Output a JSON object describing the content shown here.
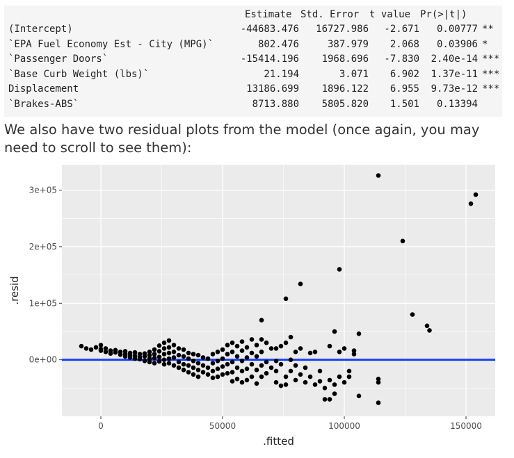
{
  "summary_table": {
    "header": [
      "Estimate",
      "Std. Error",
      "t value",
      "Pr(>|t|)"
    ],
    "rows": [
      {
        "term": "(Intercept)",
        "estimate": "-44683.476",
        "std_error": "16727.986",
        "t_value": "-2.671",
        "p_value": "0.00777",
        "signif": "**"
      },
      {
        "term": "`EPA Fuel Economy Est - City (MPG)`",
        "estimate": "802.476",
        "std_error": "387.979",
        "t_value": "2.068",
        "p_value": "0.03906",
        "signif": "*"
      },
      {
        "term": "`Passenger Doors`",
        "estimate": "-15414.196",
        "std_error": "1968.696",
        "t_value": "-7.830",
        "p_value": "2.40e-14",
        "signif": "***"
      },
      {
        "term": "`Base Curb Weight (lbs)`",
        "estimate": "21.194",
        "std_error": "3.071",
        "t_value": "6.902",
        "p_value": "1.37e-11",
        "signif": "***"
      },
      {
        "term": "Displacement",
        "estimate": "13186.699",
        "std_error": "1896.122",
        "t_value": "6.955",
        "p_value": "9.73e-12",
        "signif": "***"
      },
      {
        "term": "`Brakes-ABS`",
        "estimate": "8713.880",
        "std_error": "5805.820",
        "t_value": "1.501",
        "p_value": "0.13394",
        "signif": ""
      }
    ]
  },
  "prose": {
    "text": "We also have two residual plots from the model (once again, you may need to scroll to see them):"
  },
  "colors": {
    "panel_bg": "#ebebeb",
    "grid": "#ffffff",
    "points": "#000000",
    "fit_line": "#1a3ff5",
    "code_bg": "#f5f5f5"
  },
  "chart_data": {
    "type": "scatter",
    "title": "",
    "xlabel": ".fitted",
    "ylabel": ".resid",
    "xlim": [
      -16000,
      162000
    ],
    "ylim": [
      -100000,
      345000
    ],
    "x_ticks": [
      0,
      50000,
      100000,
      150000
    ],
    "x_tick_labels": [
      "0",
      "50000",
      "100000",
      "150000"
    ],
    "y_ticks": [
      0,
      100000,
      200000,
      300000
    ],
    "y_tick_labels": [
      "0e+00",
      "1e+05",
      "2e+05",
      "3e+05"
    ],
    "hline": 0,
    "grid": true,
    "points": [
      [
        -8000,
        24000
      ],
      [
        -6000,
        20000
      ],
      [
        -4000,
        18000
      ],
      [
        -2000,
        22000
      ],
      [
        0,
        16000
      ],
      [
        0,
        19000
      ],
      [
        0,
        26000
      ],
      [
        2000,
        14000
      ],
      [
        2000,
        20000
      ],
      [
        4000,
        16000
      ],
      [
        4000,
        11000
      ],
      [
        6000,
        17000
      ],
      [
        6000,
        13000
      ],
      [
        8000,
        14000
      ],
      [
        8000,
        9000
      ],
      [
        10000,
        15000
      ],
      [
        10000,
        10000
      ],
      [
        10000,
        6000
      ],
      [
        12000,
        12000
      ],
      [
        12000,
        8000
      ],
      [
        12000,
        4000
      ],
      [
        14000,
        13000
      ],
      [
        14000,
        7000
      ],
      [
        14000,
        2000
      ],
      [
        16000,
        10000
      ],
      [
        16000,
        5000
      ],
      [
        16000,
        1000
      ],
      [
        18000,
        11000
      ],
      [
        18000,
        6000
      ],
      [
        18000,
        -2000
      ],
      [
        20000,
        14000
      ],
      [
        20000,
        8000
      ],
      [
        20000,
        2000
      ],
      [
        20000,
        -4000
      ],
      [
        22000,
        18000
      ],
      [
        22000,
        10000
      ],
      [
        22000,
        3000
      ],
      [
        22000,
        -6000
      ],
      [
        24000,
        25000
      ],
      [
        24000,
        15000
      ],
      [
        24000,
        5000
      ],
      [
        24000,
        -3000
      ],
      [
        26000,
        30000
      ],
      [
        26000,
        20000
      ],
      [
        26000,
        10000
      ],
      [
        26000,
        0
      ],
      [
        26000,
        -8000
      ],
      [
        28000,
        34000
      ],
      [
        28000,
        22000
      ],
      [
        28000,
        12000
      ],
      [
        28000,
        2000
      ],
      [
        28000,
        -6000
      ],
      [
        30000,
        26000
      ],
      [
        30000,
        14000
      ],
      [
        30000,
        4000
      ],
      [
        30000,
        -10000
      ],
      [
        32000,
        20000
      ],
      [
        32000,
        8000
      ],
      [
        32000,
        -4000
      ],
      [
        32000,
        -14000
      ],
      [
        34000,
        18000
      ],
      [
        34000,
        6000
      ],
      [
        34000,
        -8000
      ],
      [
        34000,
        -18000
      ],
      [
        36000,
        12000
      ],
      [
        36000,
        2000
      ],
      [
        36000,
        -10000
      ],
      [
        36000,
        -22000
      ],
      [
        38000,
        10000
      ],
      [
        38000,
        -2000
      ],
      [
        38000,
        -14000
      ],
      [
        38000,
        -26000
      ],
      [
        40000,
        8000
      ],
      [
        40000,
        -6000
      ],
      [
        40000,
        -18000
      ],
      [
        40000,
        -30000
      ],
      [
        42000,
        4000
      ],
      [
        42000,
        -10000
      ],
      [
        42000,
        -22000
      ],
      [
        44000,
        2000
      ],
      [
        44000,
        -14000
      ],
      [
        44000,
        -26000
      ],
      [
        46000,
        10000
      ],
      [
        46000,
        -6000
      ],
      [
        46000,
        -20000
      ],
      [
        46000,
        -32000
      ],
      [
        48000,
        14000
      ],
      [
        48000,
        -2000
      ],
      [
        48000,
        -16000
      ],
      [
        48000,
        -30000
      ],
      [
        50000,
        18000
      ],
      [
        50000,
        2000
      ],
      [
        50000,
        -12000
      ],
      [
        50000,
        -26000
      ],
      [
        52000,
        26000
      ],
      [
        52000,
        10000
      ],
      [
        52000,
        -8000
      ],
      [
        52000,
        -24000
      ],
      [
        54000,
        30000
      ],
      [
        54000,
        14000
      ],
      [
        54000,
        -4000
      ],
      [
        54000,
        -22000
      ],
      [
        54000,
        -38000
      ],
      [
        56000,
        24000
      ],
      [
        56000,
        6000
      ],
      [
        56000,
        -14000
      ],
      [
        56000,
        -34000
      ],
      [
        58000,
        32000
      ],
      [
        58000,
        16000
      ],
      [
        58000,
        -2000
      ],
      [
        58000,
        -20000
      ],
      [
        58000,
        -40000
      ],
      [
        60000,
        22000
      ],
      [
        60000,
        4000
      ],
      [
        60000,
        -16000
      ],
      [
        60000,
        -36000
      ],
      [
        62000,
        36000
      ],
      [
        62000,
        12000
      ],
      [
        62000,
        -8000
      ],
      [
        62000,
        -30000
      ],
      [
        64000,
        26000
      ],
      [
        64000,
        6000
      ],
      [
        64000,
        -18000
      ],
      [
        64000,
        -42000
      ],
      [
        66000,
        70000
      ],
      [
        66000,
        36000
      ],
      [
        66000,
        14000
      ],
      [
        66000,
        -10000
      ],
      [
        66000,
        -30000
      ],
      [
        68000,
        30000
      ],
      [
        68000,
        -4000
      ],
      [
        68000,
        -24000
      ],
      [
        70000,
        20000
      ],
      [
        70000,
        -14000
      ],
      [
        72000,
        20000
      ],
      [
        72000,
        -2000
      ],
      [
        72000,
        -20000
      ],
      [
        72000,
        -40000
      ],
      [
        74000,
        24000
      ],
      [
        74000,
        -8000
      ],
      [
        74000,
        -46000
      ],
      [
        76000,
        108000
      ],
      [
        76000,
        30000
      ],
      [
        76000,
        -30000
      ],
      [
        76000,
        -44000
      ],
      [
        78000,
        40000
      ],
      [
        78000,
        0
      ],
      [
        78000,
        -20000
      ],
      [
        80000,
        14000
      ],
      [
        80000,
        -10000
      ],
      [
        80000,
        -36000
      ],
      [
        82000,
        134000
      ],
      [
        82000,
        20000
      ],
      [
        82000,
        -26000
      ],
      [
        84000,
        -14000
      ],
      [
        84000,
        -40000
      ],
      [
        86000,
        12000
      ],
      [
        86000,
        -30000
      ],
      [
        88000,
        14000
      ],
      [
        88000,
        -44000
      ],
      [
        90000,
        -38000
      ],
      [
        90000,
        -20000
      ],
      [
        92000,
        -50000
      ],
      [
        92000,
        -70000
      ],
      [
        94000,
        24000
      ],
      [
        94000,
        -36000
      ],
      [
        94000,
        -70000
      ],
      [
        96000,
        50000
      ],
      [
        96000,
        -44000
      ],
      [
        96000,
        -60000
      ],
      [
        98000,
        160000
      ],
      [
        98000,
        14000
      ],
      [
        98000,
        -30000
      ],
      [
        100000,
        20000
      ],
      [
        100000,
        -40000
      ],
      [
        102000,
        -30000
      ],
      [
        102000,
        -20000
      ],
      [
        104000,
        16000
      ],
      [
        104000,
        10000
      ],
      [
        106000,
        46000
      ],
      [
        106000,
        -64000
      ],
      [
        114000,
        326000
      ],
      [
        114000,
        -40000
      ],
      [
        114000,
        -34000
      ],
      [
        114000,
        -76000
      ],
      [
        124000,
        210000
      ],
      [
        128000,
        80000
      ],
      [
        134000,
        60000
      ],
      [
        135000,
        52000
      ],
      [
        152000,
        276000
      ],
      [
        154000,
        292000
      ]
    ]
  }
}
